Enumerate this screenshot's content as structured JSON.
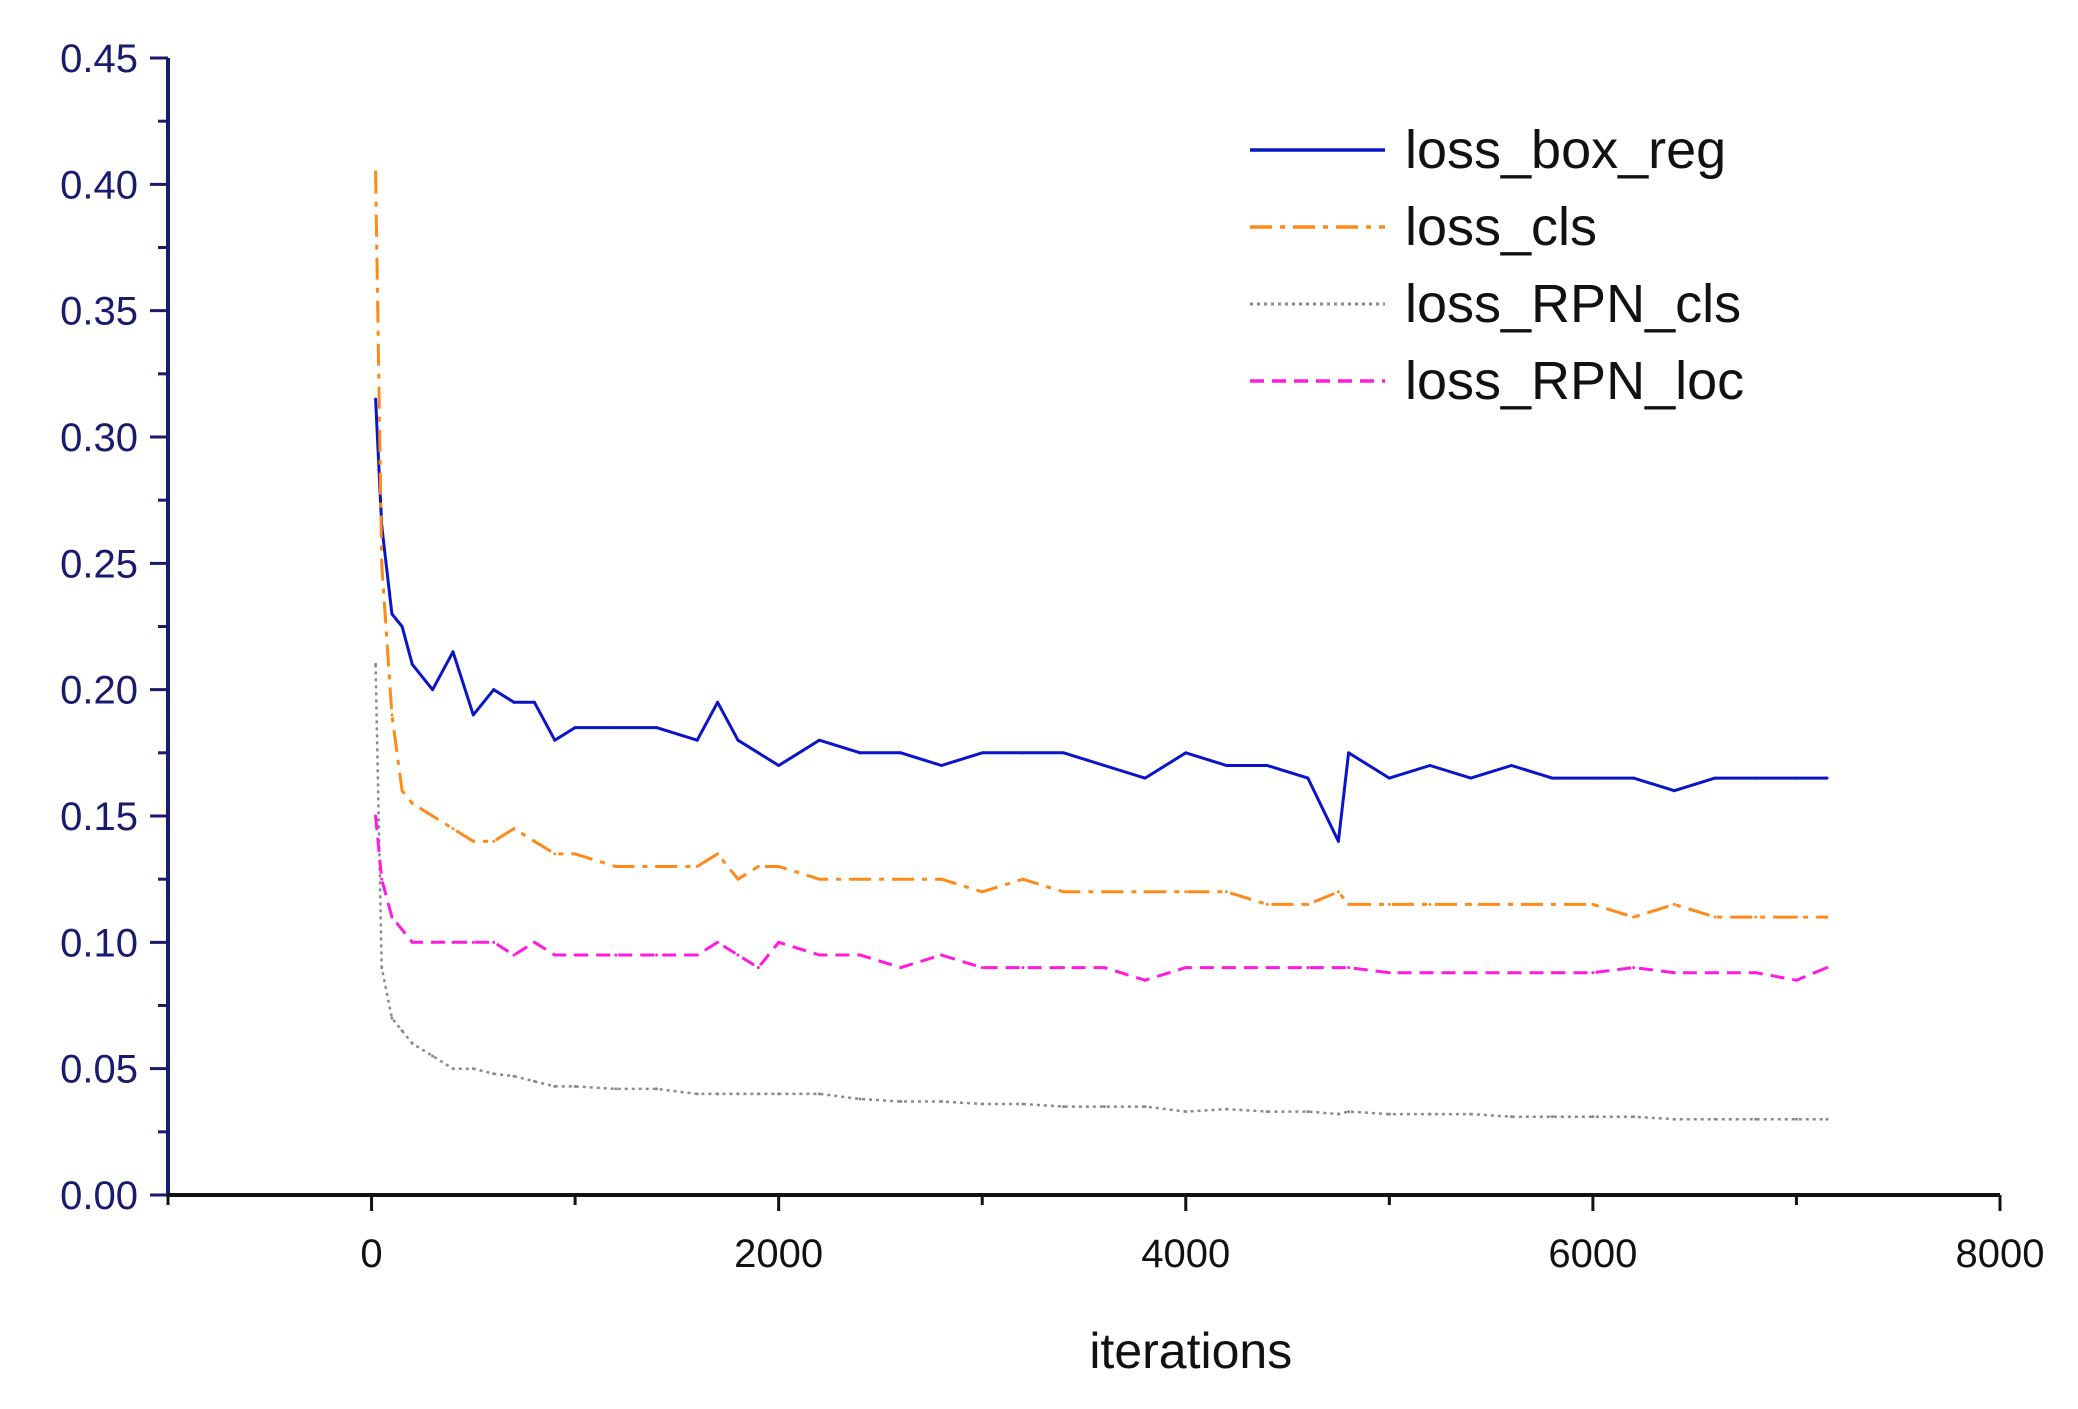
{
  "chart_data": {
    "type": "line",
    "title": "",
    "xlabel": "iterations",
    "ylabel": "",
    "xlim": [
      -1000,
      8000
    ],
    "ylim": [
      0.0,
      0.45
    ],
    "x_ticks": [
      0,
      2000,
      4000,
      6000,
      8000
    ],
    "x_tick_labels": [
      "0",
      "2000",
      "4000",
      "6000",
      "8000"
    ],
    "y_ticks": [
      0.0,
      0.05,
      0.1,
      0.15,
      0.2,
      0.25,
      0.3,
      0.35,
      0.4,
      0.45
    ],
    "y_tick_labels": [
      "0.00",
      "0.05",
      "0.10",
      "0.15",
      "0.20",
      "0.25",
      "0.30",
      "0.35",
      "0.40",
      "0.45"
    ],
    "grid": false,
    "legend_position": "top-right",
    "x": [
      20,
      50,
      100,
      150,
      200,
      300,
      400,
      500,
      600,
      700,
      800,
      900,
      1000,
      1200,
      1400,
      1600,
      1700,
      1800,
      1900,
      2000,
      2200,
      2400,
      2600,
      2800,
      3000,
      3200,
      3400,
      3600,
      3800,
      4000,
      4200,
      4400,
      4600,
      4750,
      4800,
      5000,
      5200,
      5400,
      5600,
      5800,
      6000,
      6200,
      6400,
      6600,
      6800,
      7000,
      7150
    ],
    "series": [
      {
        "name": "loss_box_reg",
        "color": "#0a14c8",
        "dash": "solid",
        "values": [
          0.315,
          0.265,
          0.23,
          0.225,
          0.21,
          0.2,
          0.215,
          0.19,
          0.2,
          0.195,
          0.195,
          0.18,
          0.185,
          0.185,
          0.185,
          0.18,
          0.195,
          0.18,
          0.175,
          0.17,
          0.18,
          0.175,
          0.175,
          0.17,
          0.175,
          0.175,
          0.175,
          0.17,
          0.165,
          0.175,
          0.17,
          0.17,
          0.165,
          0.14,
          0.175,
          0.165,
          0.17,
          0.165,
          0.17,
          0.165,
          0.165,
          0.165,
          0.16,
          0.165,
          0.165,
          0.165,
          0.165
        ]
      },
      {
        "name": "loss_cls",
        "color": "#ff8a1a",
        "dash": "dashdot",
        "values": [
          0.405,
          0.25,
          0.19,
          0.16,
          0.155,
          0.15,
          0.145,
          0.14,
          0.14,
          0.145,
          0.14,
          0.135,
          0.135,
          0.13,
          0.13,
          0.13,
          0.135,
          0.125,
          0.13,
          0.13,
          0.125,
          0.125,
          0.125,
          0.125,
          0.12,
          0.125,
          0.12,
          0.12,
          0.12,
          0.12,
          0.12,
          0.115,
          0.115,
          0.12,
          0.115,
          0.115,
          0.115,
          0.115,
          0.115,
          0.115,
          0.115,
          0.11,
          0.115,
          0.11,
          0.11,
          0.11,
          0.11
        ]
      },
      {
        "name": "loss_RPN_cls",
        "color": "#8a8a8a",
        "dash": "dotted",
        "values": [
          0.21,
          0.09,
          0.07,
          0.065,
          0.06,
          0.055,
          0.05,
          0.05,
          0.048,
          0.047,
          0.045,
          0.043,
          0.043,
          0.042,
          0.042,
          0.04,
          0.04,
          0.04,
          0.04,
          0.04,
          0.04,
          0.038,
          0.037,
          0.037,
          0.036,
          0.036,
          0.035,
          0.035,
          0.035,
          0.033,
          0.034,
          0.033,
          0.033,
          0.032,
          0.033,
          0.032,
          0.032,
          0.032,
          0.031,
          0.031,
          0.031,
          0.031,
          0.03,
          0.03,
          0.03,
          0.03,
          0.03
        ]
      },
      {
        "name": "loss_RPN_loc",
        "color": "#ff1adf",
        "dash": "dashed",
        "values": [
          0.15,
          0.125,
          0.11,
          0.105,
          0.1,
          0.1,
          0.1,
          0.1,
          0.1,
          0.095,
          0.1,
          0.095,
          0.095,
          0.095,
          0.095,
          0.095,
          0.1,
          0.095,
          0.09,
          0.1,
          0.095,
          0.095,
          0.09,
          0.095,
          0.09,
          0.09,
          0.09,
          0.09,
          0.085,
          0.09,
          0.09,
          0.09,
          0.09,
          0.09,
          0.09,
          0.088,
          0.088,
          0.088,
          0.088,
          0.088,
          0.088,
          0.09,
          0.088,
          0.088,
          0.088,
          0.085,
          0.09
        ]
      }
    ]
  }
}
